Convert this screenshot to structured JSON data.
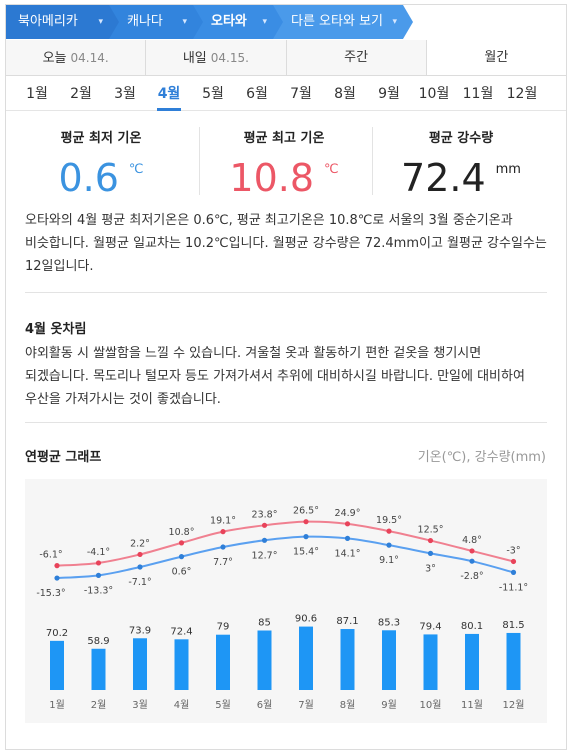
{
  "breadcrumb": {
    "items": [
      "북아메리카",
      "캐나다",
      "오타와",
      "다른 오타와 보기"
    ],
    "chevron": "▾"
  },
  "period_tabs": [
    {
      "label": "오늘",
      "date": "04.14."
    },
    {
      "label": "내일",
      "date": "04.15."
    },
    {
      "label": "주간",
      "date": ""
    },
    {
      "label": "월간",
      "date": ""
    }
  ],
  "months": [
    "1월",
    "2월",
    "3월",
    "4월",
    "5월",
    "6월",
    "7월",
    "8월",
    "9월",
    "10월",
    "11월",
    "12월"
  ],
  "active_month_index": 3,
  "stats": {
    "min": {
      "label": "평균 최저 기온",
      "value": "0.6",
      "unit": "℃",
      "color": "#3b93e0"
    },
    "max": {
      "label": "평균 최고 기온",
      "value": "10.8",
      "unit": "℃",
      "color": "#ec5766"
    },
    "rain": {
      "label": "평균 강수량",
      "value": "72.4",
      "unit": "mm",
      "color": "#222222"
    }
  },
  "summary": "오타와의 4월 평균 최저기온은 0.6℃, 평균 최고기온은 10.8℃로 서울의 3월 중순기온과 비슷합니다. 월평균 일교차는 10.2℃입니다. 월평균 강수량은 72.4mm이고 월평균 강수일수는 12일입니다.",
  "clothing": {
    "title": "4월 옷차림",
    "text": "야외활동 시 쌀쌀함을 느낄 수 있습니다. 겨울철 옷과 활동하기 편한 겉옷을 챙기시면 되겠습니다. 목도리나 털모자 등도 가져가셔서 추위에 대비하시길 바랍니다. 만일에 대비하여 우산을 가져가시는 것이 좋겠습니다."
  },
  "graph": {
    "title": "연평균 그래프",
    "unit_label": "기온(℃), 강수량(mm)"
  },
  "chart_data": {
    "type": "line",
    "categories": [
      "1월",
      "2월",
      "3월",
      "4월",
      "5월",
      "6월",
      "7월",
      "8월",
      "9월",
      "10월",
      "11월",
      "12월"
    ],
    "series": [
      {
        "values": [
          -6.1,
          -4.1,
          2.2,
          10.8,
          19.1,
          23.8,
          26.5,
          24.9,
          19.5,
          12.5,
          4.8,
          -3
        ],
        "labels": [
          "-6.1°",
          "-4.1°",
          "2.2°",
          "10.8°",
          "19.1°",
          "23.8°",
          "26.5°",
          "24.9°",
          "19.5°",
          "12.5°",
          "4.8°",
          "-3°"
        ],
        "color": "#f08090"
      },
      {
        "values": [
          -15.3,
          -13.3,
          -7.1,
          0.6,
          7.7,
          12.7,
          15.4,
          14.1,
          9.1,
          3,
          -2.8,
          -11.1
        ],
        "labels": [
          "-15.3°",
          "-13.3°",
          "-7.1°",
          "0.6°",
          "7.7°",
          "12.7°",
          "15.4°",
          "14.1°",
          "9.1°",
          "3°",
          "-2.8°",
          "-11.1°"
        ],
        "color": "#5aa0f0"
      }
    ],
    "bar_series": {
      "type": "bar",
      "values": [
        70.2,
        58.9,
        73.9,
        72.4,
        79,
        85,
        90.6,
        87.1,
        85.3,
        79.4,
        80.1,
        81.5
      ],
      "labels": [
        "70.2",
        "58.9",
        "73.9",
        "72.4",
        "79",
        "85",
        "90.6",
        "87.1",
        "85.3",
        "79.4",
        "80.1",
        "81.5"
      ],
      "color": "#1e96f5"
    }
  }
}
